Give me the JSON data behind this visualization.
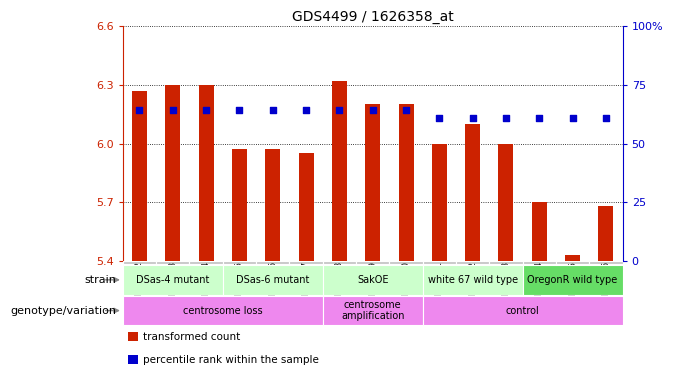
{
  "title": "GDS4499 / 1626358_at",
  "samples": [
    "GSM864362",
    "GSM864363",
    "GSM864364",
    "GSM864365",
    "GSM864366",
    "GSM864367",
    "GSM864368",
    "GSM864369",
    "GSM864370",
    "GSM864371",
    "GSM864372",
    "GSM864373",
    "GSM864374",
    "GSM864375",
    "GSM864376"
  ],
  "bar_values": [
    6.27,
    6.3,
    6.3,
    5.97,
    5.97,
    5.95,
    6.32,
    6.2,
    6.2,
    6.0,
    6.1,
    6.0,
    5.7,
    5.43,
    5.68
  ],
  "dot_values": [
    6.17,
    6.17,
    6.17,
    6.17,
    6.17,
    6.17,
    6.17,
    6.17,
    6.17,
    6.13,
    6.13,
    6.13,
    6.13,
    6.13,
    6.13
  ],
  "ylim": [
    5.4,
    6.6
  ],
  "yticks": [
    5.4,
    5.7,
    6.0,
    6.3,
    6.6
  ],
  "ytick_labels": [
    "5.4",
    "5.7",
    "6.0",
    "6.3",
    "6.6"
  ],
  "right_yticks": [
    0,
    25,
    50,
    75,
    100
  ],
  "right_ytick_labels": [
    "0",
    "25",
    "50",
    "75",
    "100%"
  ],
  "bar_color": "#cc2200",
  "dot_color": "#0000cc",
  "plot_bg_color": "#ffffff",
  "xticklabel_bg": "#c8c8c8",
  "strain_row": [
    {
      "label": "DSas-4 mutant",
      "start": 0,
      "end": 2,
      "color": "#ccffcc"
    },
    {
      "label": "DSas-6 mutant",
      "start": 3,
      "end": 5,
      "color": "#ccffcc"
    },
    {
      "label": "SakOE",
      "start": 6,
      "end": 8,
      "color": "#ccffcc"
    },
    {
      "label": "white 67 wild type",
      "start": 9,
      "end": 11,
      "color": "#ccffcc"
    },
    {
      "label": "OregonR wild type",
      "start": 12,
      "end": 14,
      "color": "#66dd66"
    }
  ],
  "genotype_row": [
    {
      "label": "centrosome loss",
      "start": 0,
      "end": 5,
      "color": "#ee88ee"
    },
    {
      "label": "centrosome\namplification",
      "start": 6,
      "end": 8,
      "color": "#ee88ee"
    },
    {
      "label": "control",
      "start": 9,
      "end": 14,
      "color": "#ee88ee"
    }
  ],
  "legend_items": [
    {
      "color": "#cc2200",
      "label": "transformed count"
    },
    {
      "color": "#0000cc",
      "label": "percentile rank within the sample"
    }
  ],
  "left_axis_color": "#cc2200",
  "right_axis_color": "#0000cc"
}
